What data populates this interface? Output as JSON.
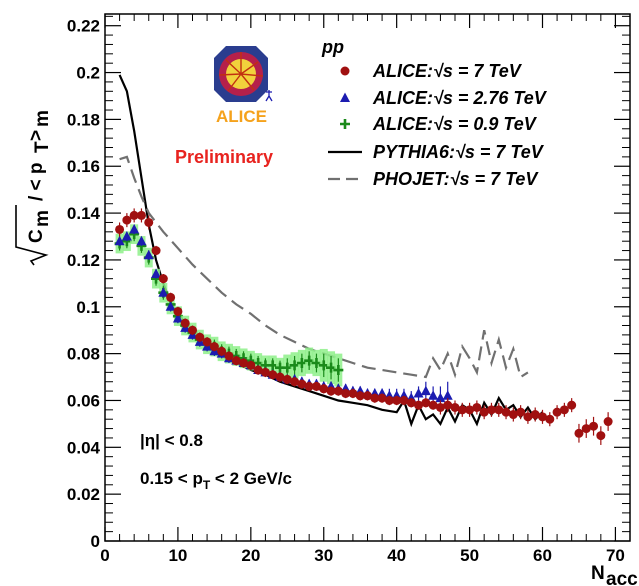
{
  "chart_data": {
    "type": "scatter",
    "xlabel_main": "N",
    "xlabel_sub": "acc",
    "ylabel": "√Cm / < pT >m",
    "xlim": [
      0,
      72
    ],
    "ylim": [
      0,
      0.225
    ],
    "x_ticks": [
      0,
      10,
      20,
      30,
      40,
      50,
      60,
      70
    ],
    "y_ticks": [
      0,
      0.02,
      0.04,
      0.06,
      0.08,
      0.1,
      0.12,
      0.14,
      0.16,
      0.18,
      0.2,
      0.22
    ],
    "x_tick_labels": [
      "0",
      "10",
      "20",
      "30",
      "40",
      "50",
      "60",
      "70"
    ],
    "y_tick_labels": [
      "0",
      "0.02",
      "0.04",
      "0.06",
      "0.08",
      "0.1",
      "0.12",
      "0.14",
      "0.16",
      "0.18",
      "0.2",
      "0.22"
    ],
    "legend_header": "pp",
    "legend_placement": "top-right",
    "annotations": {
      "eta_cut": "|η| < 0.8",
      "pt_cut_a": "0.15 < p",
      "pt_cut_sub": "T",
      "pt_cut_b": " < 2 GeV/c",
      "preliminary": "Preliminary",
      "logo": "ALICE"
    },
    "series": [
      {
        "name": "ALICE:√s = 7 TeV",
        "style": "marker-circle",
        "color": "#a01010",
        "x": [
          2,
          3,
          4,
          5,
          6,
          7,
          8,
          9,
          10,
          11,
          12,
          13,
          14,
          15,
          16,
          17,
          18,
          19,
          20,
          21,
          22,
          23,
          24,
          25,
          26,
          27,
          28,
          29,
          30,
          31,
          32,
          33,
          34,
          35,
          36,
          37,
          38,
          39,
          40,
          41,
          42,
          43,
          44,
          45,
          46,
          47,
          48,
          49,
          50,
          51,
          52,
          53,
          54,
          55,
          56,
          57,
          58,
          59,
          60,
          61,
          62,
          63,
          64,
          65,
          66,
          67,
          68,
          69
        ],
        "y": [
          0.133,
          0.137,
          0.139,
          0.139,
          0.136,
          0.124,
          0.112,
          0.104,
          0.098,
          0.093,
          0.09,
          0.087,
          0.085,
          0.083,
          0.081,
          0.079,
          0.077,
          0.076,
          0.075,
          0.073,
          0.072,
          0.071,
          0.07,
          0.069,
          0.068,
          0.067,
          0.066,
          0.066,
          0.065,
          0.064,
          0.064,
          0.063,
          0.063,
          0.062,
          0.062,
          0.061,
          0.061,
          0.06,
          0.06,
          0.06,
          0.059,
          0.058,
          0.059,
          0.058,
          0.057,
          0.058,
          0.057,
          0.056,
          0.056,
          0.057,
          0.055,
          0.056,
          0.056,
          0.055,
          0.054,
          0.055,
          0.053,
          0.054,
          0.053,
          0.052,
          0.055,
          0.056,
          0.058,
          0.046,
          0.048,
          0.049,
          0.045,
          0.051
        ],
        "yerr": [
          0.003,
          0.003,
          0.003,
          0.003,
          0.003,
          0.002,
          0.002,
          0.002,
          0.002,
          0.002,
          0.002,
          0.002,
          0.002,
          0.002,
          0.002,
          0.002,
          0.002,
          0.002,
          0.002,
          0.002,
          0.002,
          0.002,
          0.002,
          0.002,
          0.002,
          0.002,
          0.002,
          0.002,
          0.002,
          0.002,
          0.002,
          0.002,
          0.002,
          0.002,
          0.002,
          0.002,
          0.002,
          0.002,
          0.002,
          0.002,
          0.002,
          0.002,
          0.002,
          0.002,
          0.003,
          0.003,
          0.003,
          0.003,
          0.003,
          0.003,
          0.003,
          0.003,
          0.003,
          0.003,
          0.003,
          0.003,
          0.003,
          0.003,
          0.003,
          0.003,
          0.003,
          0.003,
          0.003,
          0.004,
          0.004,
          0.004,
          0.004,
          0.004
        ]
      },
      {
        "name": "ALICE:√s = 2.76 TeV",
        "style": "marker-triangle",
        "color": "#1c1cb0",
        "x": [
          2,
          3,
          4,
          5,
          6,
          7,
          8,
          9,
          10,
          11,
          12,
          13,
          14,
          15,
          16,
          17,
          18,
          19,
          20,
          21,
          22,
          23,
          24,
          25,
          26,
          27,
          28,
          29,
          30,
          31,
          32,
          33,
          34,
          35,
          36,
          37,
          38,
          39,
          40,
          41,
          42,
          43,
          44,
          45,
          46,
          47
        ],
        "y": [
          0.128,
          0.13,
          0.133,
          0.128,
          0.122,
          0.114,
          0.106,
          0.1,
          0.095,
          0.091,
          0.088,
          0.085,
          0.083,
          0.081,
          0.08,
          0.078,
          0.077,
          0.076,
          0.075,
          0.073,
          0.072,
          0.071,
          0.07,
          0.069,
          0.069,
          0.068,
          0.067,
          0.067,
          0.066,
          0.066,
          0.065,
          0.065,
          0.064,
          0.064,
          0.063,
          0.063,
          0.063,
          0.062,
          0.062,
          0.062,
          0.061,
          0.063,
          0.064,
          0.062,
          0.061,
          0.062
        ],
        "yerr": [
          0.002,
          0.002,
          0.002,
          0.002,
          0.002,
          0.002,
          0.002,
          0.002,
          0.002,
          0.002,
          0.002,
          0.002,
          0.002,
          0.002,
          0.002,
          0.002,
          0.002,
          0.002,
          0.002,
          0.002,
          0.002,
          0.002,
          0.002,
          0.002,
          0.002,
          0.002,
          0.002,
          0.002,
          0.002,
          0.002,
          0.002,
          0.002,
          0.002,
          0.002,
          0.002,
          0.002,
          0.002,
          0.003,
          0.003,
          0.003,
          0.003,
          0.003,
          0.004,
          0.004,
          0.005,
          0.006
        ]
      },
      {
        "name": "ALICE:√s = 0.9 TeV",
        "style": "marker-cross",
        "color": "#1a8a1a",
        "x": [
          2,
          3,
          4,
          5,
          6,
          7,
          8,
          9,
          10,
          11,
          12,
          13,
          14,
          15,
          16,
          17,
          18,
          19,
          20,
          21,
          22,
          23,
          24,
          25,
          26,
          27,
          28,
          29,
          30,
          31,
          32
        ],
        "y": [
          0.127,
          0.128,
          0.131,
          0.126,
          0.121,
          0.112,
          0.106,
          0.101,
          0.096,
          0.092,
          0.089,
          0.086,
          0.084,
          0.083,
          0.081,
          0.08,
          0.079,
          0.078,
          0.077,
          0.076,
          0.075,
          0.075,
          0.074,
          0.074,
          0.075,
          0.076,
          0.077,
          0.076,
          0.075,
          0.074,
          0.073
        ],
        "yerr": [
          0.003,
          0.003,
          0.003,
          0.003,
          0.003,
          0.003,
          0.003,
          0.003,
          0.003,
          0.003,
          0.003,
          0.003,
          0.003,
          0.003,
          0.003,
          0.003,
          0.003,
          0.003,
          0.003,
          0.003,
          0.003,
          0.003,
          0.003,
          0.004,
          0.004,
          0.004,
          0.004,
          0.004,
          0.005,
          0.005,
          0.005
        ]
      },
      {
        "name": "PYTHIA6:√s = 7 TeV",
        "style": "line-solid",
        "color": "#000000",
        "x": [
          2,
          3,
          4,
          5,
          6,
          7,
          8,
          9,
          10,
          12,
          14,
          16,
          18,
          20,
          22,
          24,
          26,
          28,
          30,
          32,
          34,
          36,
          38,
          40,
          41,
          42,
          43,
          44,
          45,
          46,
          47,
          48,
          49,
          50,
          51,
          52,
          53,
          54,
          55,
          56,
          57,
          58,
          59,
          60
        ],
        "y": [
          0.199,
          0.192,
          0.175,
          0.155,
          0.135,
          0.12,
          0.11,
          0.102,
          0.097,
          0.089,
          0.083,
          0.079,
          0.076,
          0.073,
          0.071,
          0.068,
          0.066,
          0.064,
          0.062,
          0.06,
          0.059,
          0.058,
          0.056,
          0.055,
          0.06,
          0.05,
          0.058,
          0.052,
          0.054,
          0.05,
          0.057,
          0.051,
          0.058,
          0.056,
          0.05,
          0.059,
          0.054,
          0.061,
          0.056,
          0.058,
          0.053,
          0.057,
          0.052,
          0.055
        ]
      },
      {
        "name": "PHOJET:√s = 7 TeV",
        "style": "line-dashed",
        "color": "#707070",
        "x": [
          2,
          3,
          4,
          5,
          6,
          8,
          10,
          12,
          14,
          16,
          18,
          20,
          22,
          24,
          26,
          28,
          30,
          32,
          34,
          36,
          38,
          40,
          42,
          44,
          45,
          46,
          47,
          48,
          49,
          50,
          51,
          52,
          53,
          54,
          55,
          56,
          57,
          58
        ],
        "y": [
          0.163,
          0.164,
          0.155,
          0.147,
          0.14,
          0.132,
          0.125,
          0.118,
          0.112,
          0.106,
          0.101,
          0.097,
          0.092,
          0.088,
          0.085,
          0.082,
          0.08,
          0.078,
          0.076,
          0.074,
          0.073,
          0.072,
          0.071,
          0.07,
          0.078,
          0.073,
          0.08,
          0.071,
          0.083,
          0.078,
          0.072,
          0.09,
          0.076,
          0.086,
          0.074,
          0.082,
          0.07,
          0.072
        ]
      }
    ]
  }
}
